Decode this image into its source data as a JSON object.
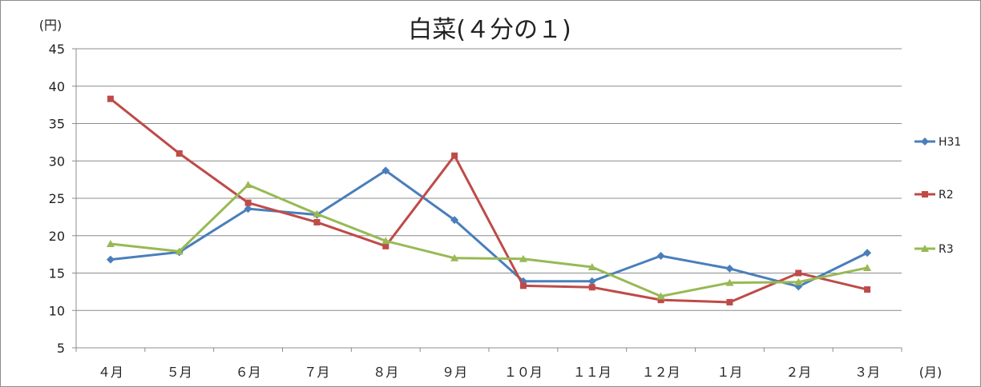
{
  "chart_data": {
    "type": "line",
    "title": "白菜(４分の１)",
    "ylabel": "(円)",
    "xlabel": "(月)",
    "categories": [
      "４月",
      "５月",
      "６月",
      "７月",
      "８月",
      "９月",
      "１０月",
      "１１月",
      "１２月",
      "１月",
      "２月",
      "３月"
    ],
    "ylim": [
      5,
      45
    ],
    "yticks": [
      5,
      10,
      15,
      20,
      25,
      30,
      35,
      40,
      45
    ],
    "grid": true,
    "legend": "right",
    "series": [
      {
        "name": "H31",
        "color": "#4a7ebb",
        "marker": "diamond",
        "values": [
          16.8,
          17.8,
          23.6,
          22.8,
          28.7,
          22.1,
          13.9,
          13.9,
          17.3,
          15.6,
          13.2,
          17.7
        ]
      },
      {
        "name": "R2",
        "color": "#be4b48",
        "marker": "square",
        "values": [
          38.3,
          31.0,
          24.4,
          21.8,
          18.6,
          30.7,
          13.3,
          13.1,
          11.4,
          11.1,
          15.0,
          12.8
        ]
      },
      {
        "name": "R3",
        "color": "#98b954",
        "marker": "triangle",
        "values": [
          18.9,
          17.9,
          26.8,
          22.9,
          19.3,
          17.0,
          16.9,
          15.8,
          11.9,
          13.7,
          13.8,
          15.7
        ]
      }
    ]
  }
}
